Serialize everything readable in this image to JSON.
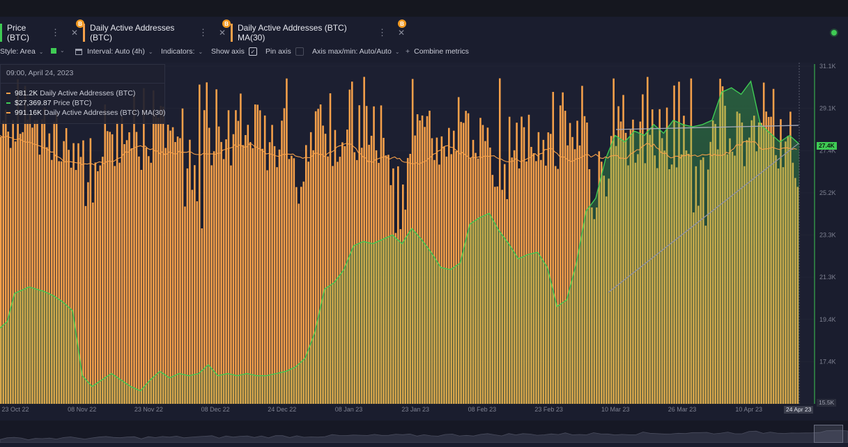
{
  "tabs": [
    {
      "label": "Price (BTC)",
      "badge": "B",
      "accent": "#3fcb54"
    },
    {
      "label": "Daily Active Addresses (BTC)",
      "badge": "B",
      "accent": "#f5a04a"
    },
    {
      "label": "Daily Active Addresses (BTC) MA(30)",
      "badge": "B",
      "accent": "#f5a04a"
    }
  ],
  "tab_kebab": "⋮",
  "tab_close": "✕",
  "toolbar": {
    "style_label": "Style: Area",
    "interval_label": "Interval: Auto (4h)",
    "indicators_label": "Indicators:",
    "show_axis_label": "Show axis",
    "pin_axis_label": "Pin axis",
    "axis_maxmin_label": "Axis max/min: Auto/Auto",
    "combine_label": "Combine metrics",
    "plus": "+",
    "check": "✓",
    "chevron": "⌄"
  },
  "tooltip": {
    "date": "09:00, April 24, 2023",
    "rows": [
      {
        "value": "981.2K",
        "name": "Daily Active Addresses (BTC)",
        "color": "#f5a04a"
      },
      {
        "value": "$27,369.87",
        "name": "Price (BTC)",
        "color": "#3fcb54"
      },
      {
        "value": "991.16K",
        "name": "Daily Active Addresses (BTC) MA(30)",
        "color": "#f5a04a"
      }
    ]
  },
  "price_tag": "27.4K",
  "current_date_tag": "24 Apr 23",
  "bottom_tag": "15.5K",
  "chart_data": {
    "type": "bar",
    "y_axis_ticks": [
      "31.1K",
      "29.1K",
      "27.4K",
      "25.2K",
      "23.3K",
      "21.3K",
      "19.4K",
      "17.4K",
      "15.5K"
    ],
    "x_axis_ticks": [
      "23 Oct 22",
      "08 Nov 22",
      "23 Nov 22",
      "08 Dec 22",
      "24 Dec 22",
      "08 Jan 23",
      "23 Jan 23",
      "08 Feb 23",
      "23 Feb 23",
      "10 Mar 23",
      "26 Mar 23",
      "10 Apr 23"
    ],
    "price_line_keypoints": [
      [
        0,
        19.0
      ],
      [
        3,
        19.3
      ],
      [
        6,
        20.6
      ],
      [
        12,
        20.9
      ],
      [
        18,
        20.7
      ],
      [
        22,
        20.5
      ],
      [
        26,
        20.2
      ],
      [
        30,
        19.8
      ],
      [
        34,
        16.8
      ],
      [
        38,
        16.3
      ],
      [
        42,
        16.6
      ],
      [
        46,
        16.9
      ],
      [
        50,
        16.6
      ],
      [
        54,
        16.3
      ],
      [
        58,
        16.1
      ],
      [
        62,
        16.6
      ],
      [
        66,
        17.0
      ],
      [
        70,
        16.7
      ],
      [
        74,
        16.9
      ],
      [
        78,
        16.8
      ],
      [
        82,
        16.9
      ],
      [
        86,
        17.3
      ],
      [
        90,
        16.8
      ],
      [
        94,
        16.9
      ],
      [
        98,
        16.8
      ],
      [
        102,
        16.9
      ],
      [
        106,
        16.8
      ],
      [
        110,
        16.8
      ],
      [
        114,
        16.9
      ],
      [
        118,
        17.0
      ],
      [
        122,
        17.2
      ],
      [
        126,
        17.6
      ],
      [
        130,
        18.8
      ],
      [
        134,
        20.8
      ],
      [
        138,
        21.1
      ],
      [
        142,
        21.7
      ],
      [
        146,
        22.8
      ],
      [
        150,
        23.0
      ],
      [
        154,
        22.9
      ],
      [
        158,
        23.1
      ],
      [
        162,
        23.3
      ],
      [
        166,
        22.9
      ],
      [
        170,
        23.6
      ],
      [
        174,
        23.1
      ],
      [
        178,
        22.5
      ],
      [
        182,
        21.8
      ],
      [
        186,
        21.7
      ],
      [
        190,
        22.0
      ],
      [
        194,
        23.8
      ],
      [
        198,
        24.1
      ],
      [
        202,
        24.3
      ],
      [
        206,
        23.5
      ],
      [
        210,
        22.9
      ],
      [
        214,
        22.2
      ],
      [
        218,
        22.4
      ],
      [
        222,
        22.5
      ],
      [
        226,
        21.8
      ],
      [
        230,
        20.0
      ],
      [
        234,
        20.3
      ],
      [
        238,
        22.0
      ],
      [
        242,
        24.4
      ],
      [
        246,
        25.0
      ],
      [
        250,
        26.8
      ],
      [
        254,
        27.9
      ],
      [
        258,
        27.6
      ],
      [
        262,
        28.1
      ],
      [
        266,
        27.9
      ],
      [
        270,
        28.4
      ],
      [
        274,
        28.0
      ],
      [
        278,
        28.6
      ],
      [
        282,
        28.4
      ],
      [
        286,
        28.3
      ],
      [
        290,
        28.4
      ],
      [
        294,
        28.6
      ],
      [
        298,
        29.9
      ],
      [
        302,
        30.1
      ],
      [
        306,
        29.8
      ],
      [
        310,
        30.4
      ],
      [
        314,
        28.4
      ],
      [
        318,
        28.0
      ],
      [
        322,
        27.6
      ],
      [
        326,
        27.9
      ],
      [
        330,
        27.5
      ]
    ],
    "dotted_diagonal": "gray",
    "bar_color": "#f5a04a",
    "ma_color": "#f5a04a",
    "price_color": "#3fcb54",
    "legend_position": "top-left tooltip",
    "grid": true
  }
}
